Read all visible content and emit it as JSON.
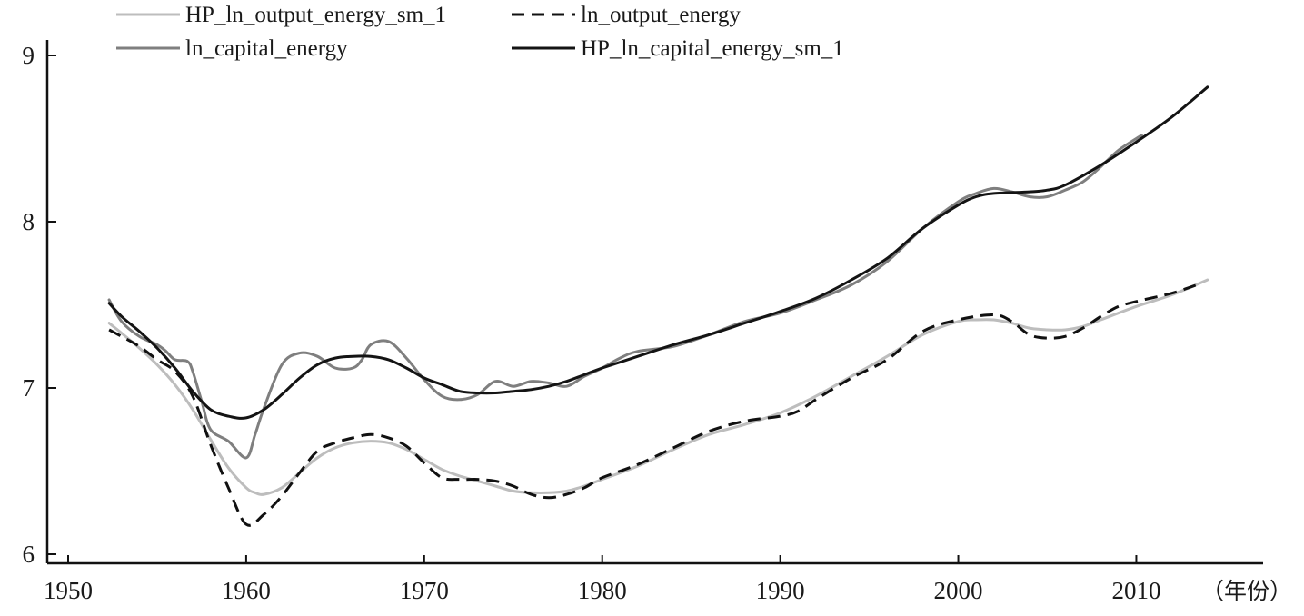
{
  "chart_data": {
    "type": "line",
    "xunit": "（年份）",
    "xlim": [
      1950,
      2016
    ],
    "ylim": [
      6,
      9
    ],
    "xticks": [
      1950,
      1960,
      1970,
      1980,
      1990,
      2000,
      2010
    ],
    "yticks": [
      6,
      7,
      8,
      9
    ],
    "grid": false,
    "legend_position": "top",
    "series": [
      {
        "name": "HP_ln_output_energy_sm_1",
        "color": "#bdbdbd",
        "dash": "solid",
        "points": [
          [
            1952.3,
            7.39
          ],
          [
            1953,
            7.33
          ],
          [
            1954,
            7.24
          ],
          [
            1955,
            7.14
          ],
          [
            1956,
            7.02
          ],
          [
            1957,
            6.87
          ],
          [
            1958,
            6.69
          ],
          [
            1959,
            6.52
          ],
          [
            1960,
            6.4
          ],
          [
            1960.5,
            6.37
          ],
          [
            1961,
            6.36
          ],
          [
            1962,
            6.4
          ],
          [
            1963,
            6.49
          ],
          [
            1964,
            6.58
          ],
          [
            1965,
            6.64
          ],
          [
            1966,
            6.67
          ],
          [
            1967,
            6.68
          ],
          [
            1968,
            6.67
          ],
          [
            1969,
            6.63
          ],
          [
            1970,
            6.57
          ],
          [
            1971,
            6.51
          ],
          [
            1972,
            6.47
          ],
          [
            1973,
            6.44
          ],
          [
            1974,
            6.41
          ],
          [
            1975,
            6.38
          ],
          [
            1976,
            6.37
          ],
          [
            1977,
            6.37
          ],
          [
            1978,
            6.38
          ],
          [
            1979,
            6.41
          ],
          [
            1980,
            6.45
          ],
          [
            1982,
            6.53
          ],
          [
            1984,
            6.63
          ],
          [
            1986,
            6.72
          ],
          [
            1988,
            6.78
          ],
          [
            1990,
            6.85
          ],
          [
            1992,
            6.95
          ],
          [
            1994,
            7.07
          ],
          [
            1996,
            7.19
          ],
          [
            1998,
            7.32
          ],
          [
            2000,
            7.4
          ],
          [
            2001,
            7.41
          ],
          [
            2002,
            7.41
          ],
          [
            2003,
            7.39
          ],
          [
            2004,
            7.36
          ],
          [
            2005,
            7.35
          ],
          [
            2006,
            7.35
          ],
          [
            2007,
            7.37
          ],
          [
            2008,
            7.41
          ],
          [
            2010,
            7.49
          ],
          [
            2012,
            7.56
          ],
          [
            2014,
            7.65
          ]
        ]
      },
      {
        "name": "ln_output_energy",
        "color": "#111111",
        "dash": "dashed",
        "points": [
          [
            1952.3,
            7.35
          ],
          [
            1953,
            7.31
          ],
          [
            1954,
            7.25
          ],
          [
            1955,
            7.17
          ],
          [
            1956,
            7.1
          ],
          [
            1957,
            6.95
          ],
          [
            1958,
            6.66
          ],
          [
            1959,
            6.4
          ],
          [
            1960,
            6.18
          ],
          [
            1961,
            6.24
          ],
          [
            1962,
            6.35
          ],
          [
            1963,
            6.49
          ],
          [
            1964,
            6.62
          ],
          [
            1965,
            6.67
          ],
          [
            1966,
            6.7
          ],
          [
            1967,
            6.72
          ],
          [
            1968,
            6.7
          ],
          [
            1969,
            6.65
          ],
          [
            1970,
            6.55
          ],
          [
            1971,
            6.46
          ],
          [
            1972,
            6.45
          ],
          [
            1973,
            6.45
          ],
          [
            1974,
            6.44
          ],
          [
            1975,
            6.41
          ],
          [
            1976,
            6.36
          ],
          [
            1977,
            6.34
          ],
          [
            1978,
            6.36
          ],
          [
            1979,
            6.4
          ],
          [
            1980,
            6.46
          ],
          [
            1982,
            6.54
          ],
          [
            1984,
            6.64
          ],
          [
            1986,
            6.74
          ],
          [
            1988,
            6.8
          ],
          [
            1990,
            6.83
          ],
          [
            1991,
            6.86
          ],
          [
            1992,
            6.93
          ],
          [
            1994,
            7.06
          ],
          [
            1996,
            7.17
          ],
          [
            1998,
            7.34
          ],
          [
            2000,
            7.41
          ],
          [
            2002,
            7.44
          ],
          [
            2003,
            7.4
          ],
          [
            2004,
            7.32
          ],
          [
            2005,
            7.3
          ],
          [
            2006,
            7.31
          ],
          [
            2007,
            7.36
          ],
          [
            2008,
            7.43
          ],
          [
            2009,
            7.49
          ],
          [
            2010,
            7.52
          ],
          [
            2012,
            7.57
          ],
          [
            2013.4,
            7.62
          ]
        ]
      },
      {
        "name": "ln_capital_energy",
        "color": "#7f7f7f",
        "dash": "solid",
        "points": [
          [
            1952.3,
            7.53
          ],
          [
            1953,
            7.4
          ],
          [
            1954,
            7.31
          ],
          [
            1955,
            7.26
          ],
          [
            1955.5,
            7.22
          ],
          [
            1956,
            7.17
          ],
          [
            1956.7,
            7.16
          ],
          [
            1957,
            7.1
          ],
          [
            1957.5,
            6.92
          ],
          [
            1958,
            6.75
          ],
          [
            1959,
            6.68
          ],
          [
            1960,
            6.58
          ],
          [
            1960.5,
            6.72
          ],
          [
            1961,
            6.88
          ],
          [
            1962,
            7.14
          ],
          [
            1963,
            7.21
          ],
          [
            1964,
            7.19
          ],
          [
            1965,
            7.12
          ],
          [
            1966,
            7.12
          ],
          [
            1966.5,
            7.17
          ],
          [
            1967,
            7.26
          ],
          [
            1968,
            7.28
          ],
          [
            1969,
            7.18
          ],
          [
            1970,
            7.05
          ],
          [
            1971,
            6.95
          ],
          [
            1972,
            6.93
          ],
          [
            1973,
            6.96
          ],
          [
            1974,
            7.04
          ],
          [
            1975,
            7.01
          ],
          [
            1976,
            7.04
          ],
          [
            1977,
            7.03
          ],
          [
            1978,
            7.01
          ],
          [
            1979,
            7.07
          ],
          [
            1980,
            7.12
          ],
          [
            1981,
            7.18
          ],
          [
            1982,
            7.22
          ],
          [
            1984,
            7.25
          ],
          [
            1986,
            7.32
          ],
          [
            1988,
            7.4
          ],
          [
            1990,
            7.45
          ],
          [
            1992,
            7.53
          ],
          [
            1994,
            7.62
          ],
          [
            1996,
            7.76
          ],
          [
            1998,
            7.96
          ],
          [
            2000,
            8.12
          ],
          [
            2001,
            8.17
          ],
          [
            2002,
            8.2
          ],
          [
            2003,
            8.18
          ],
          [
            2004,
            8.15
          ],
          [
            2005,
            8.15
          ],
          [
            2006,
            8.19
          ],
          [
            2007,
            8.24
          ],
          [
            2008,
            8.33
          ],
          [
            2009,
            8.43
          ],
          [
            2010.3,
            8.52
          ]
        ]
      },
      {
        "name": "HP_ln_capital_energy_sm_1",
        "color": "#141414",
        "dash": "solid",
        "points": [
          [
            1952.3,
            7.51
          ],
          [
            1953,
            7.43
          ],
          [
            1954,
            7.34
          ],
          [
            1955,
            7.24
          ],
          [
            1956,
            7.12
          ],
          [
            1957,
            6.98
          ],
          [
            1958,
            6.87
          ],
          [
            1959,
            6.83
          ],
          [
            1960,
            6.82
          ],
          [
            1961,
            6.87
          ],
          [
            1962,
            6.96
          ],
          [
            1963,
            7.06
          ],
          [
            1964,
            7.14
          ],
          [
            1965,
            7.18
          ],
          [
            1966,
            7.19
          ],
          [
            1967,
            7.19
          ],
          [
            1968,
            7.17
          ],
          [
            1969,
            7.12
          ],
          [
            1970,
            7.06
          ],
          [
            1971,
            7.02
          ],
          [
            1972,
            6.98
          ],
          [
            1973,
            6.97
          ],
          [
            1974,
            6.97
          ],
          [
            1975,
            6.98
          ],
          [
            1976,
            6.99
          ],
          [
            1977,
            7.01
          ],
          [
            1978,
            7.04
          ],
          [
            1979,
            7.08
          ],
          [
            1980,
            7.12
          ],
          [
            1982,
            7.19
          ],
          [
            1984,
            7.26
          ],
          [
            1986,
            7.32
          ],
          [
            1988,
            7.39
          ],
          [
            1990,
            7.46
          ],
          [
            1992,
            7.54
          ],
          [
            1994,
            7.65
          ],
          [
            1996,
            7.78
          ],
          [
            1998,
            7.96
          ],
          [
            2000,
            8.1
          ],
          [
            2001,
            8.15
          ],
          [
            2002,
            8.17
          ],
          [
            2004,
            8.18
          ],
          [
            2005,
            8.19
          ],
          [
            2006,
            8.22
          ],
          [
            2008,
            8.34
          ],
          [
            2010,
            8.48
          ],
          [
            2012,
            8.63
          ],
          [
            2014,
            8.81
          ]
        ]
      }
    ]
  }
}
